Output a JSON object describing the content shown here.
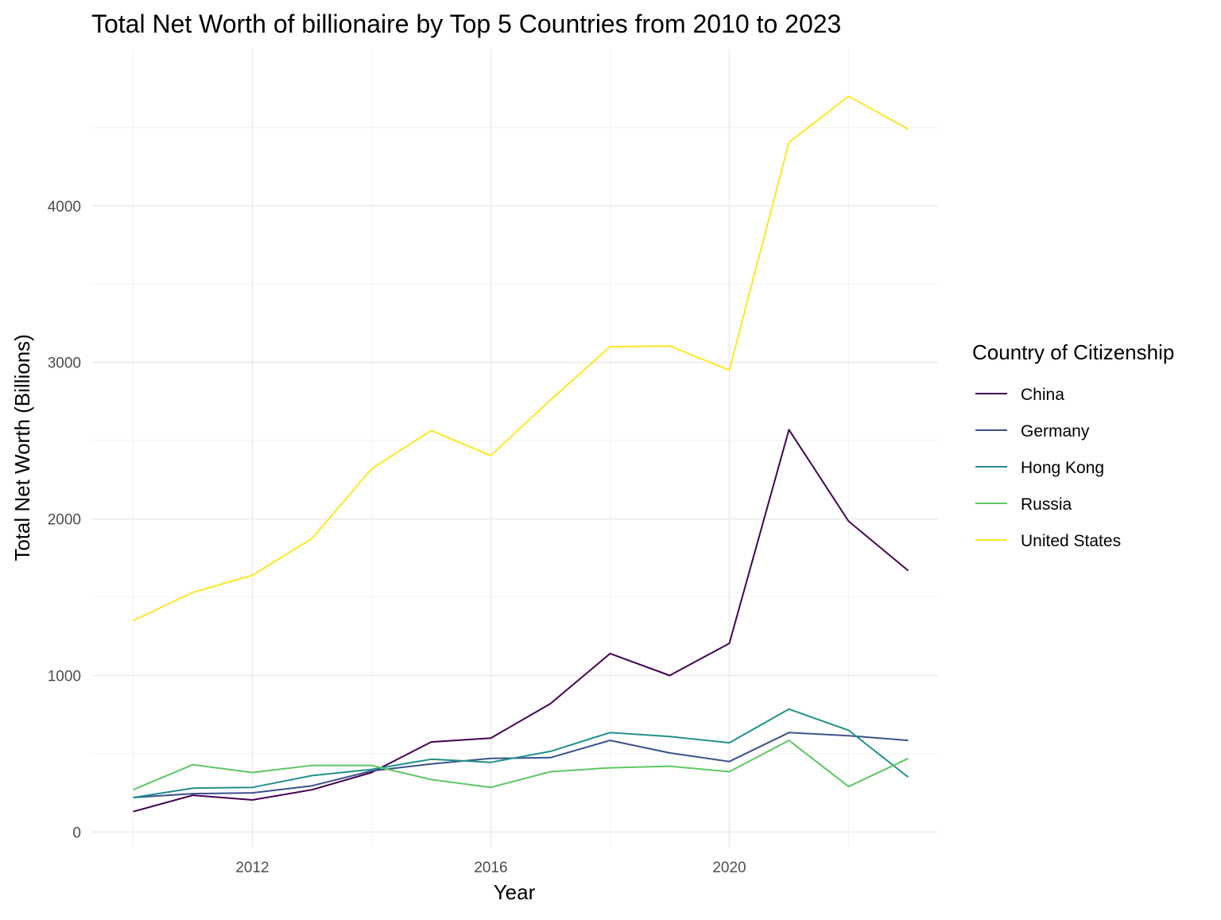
{
  "chart_data": {
    "type": "line",
    "title": "Total Net Worth of billionaire by Top 5 Countries from 2010 to 2023",
    "xlabel": "Year",
    "ylabel": "Total Net Worth (Billions)",
    "xlim": [
      2009.3,
      2023.5
    ],
    "ylim": [
      -100,
      5000
    ],
    "x_ticks": [
      2012,
      2016,
      2020
    ],
    "x_minor_ticks": [
      2010,
      2014,
      2018,
      2022
    ],
    "y_ticks": [
      0,
      1000,
      2000,
      3000,
      4000
    ],
    "y_minor_ticks": [
      500,
      1500,
      2500,
      3500,
      4500
    ],
    "grid": true,
    "legend": {
      "title": "Country of Citizenship",
      "position": "right"
    },
    "x": [
      2010,
      2011,
      2012,
      2013,
      2014,
      2015,
      2016,
      2017,
      2018,
      2019,
      2020,
      2021,
      2022,
      2023
    ],
    "series": [
      {
        "name": "China",
        "color": "#440154",
        "values": [
          130,
          235,
          205,
          270,
          380,
          575,
          600,
          820,
          1140,
          1000,
          1205,
          2570,
          1985,
          1670
        ]
      },
      {
        "name": "Germany",
        "color": "#3B528B",
        "values": [
          220,
          245,
          250,
          295,
          390,
          435,
          470,
          475,
          585,
          505,
          450,
          635,
          615,
          585
        ]
      },
      {
        "name": "Hong Kong",
        "color": "#21908C",
        "values": [
          220,
          280,
          285,
          360,
          400,
          465,
          445,
          515,
          635,
          610,
          570,
          785,
          650,
          350
        ]
      },
      {
        "name": "Russia",
        "color": "#5DC863",
        "values": [
          270,
          430,
          380,
          425,
          425,
          335,
          285,
          385,
          410,
          420,
          385,
          585,
          290,
          470
        ]
      },
      {
        "name": "United States",
        "color": "#FDE725",
        "values": [
          1350,
          1530,
          1640,
          1875,
          2320,
          2565,
          2405,
          2760,
          3100,
          3105,
          2950,
          4405,
          4700,
          4490
        ]
      }
    ]
  }
}
